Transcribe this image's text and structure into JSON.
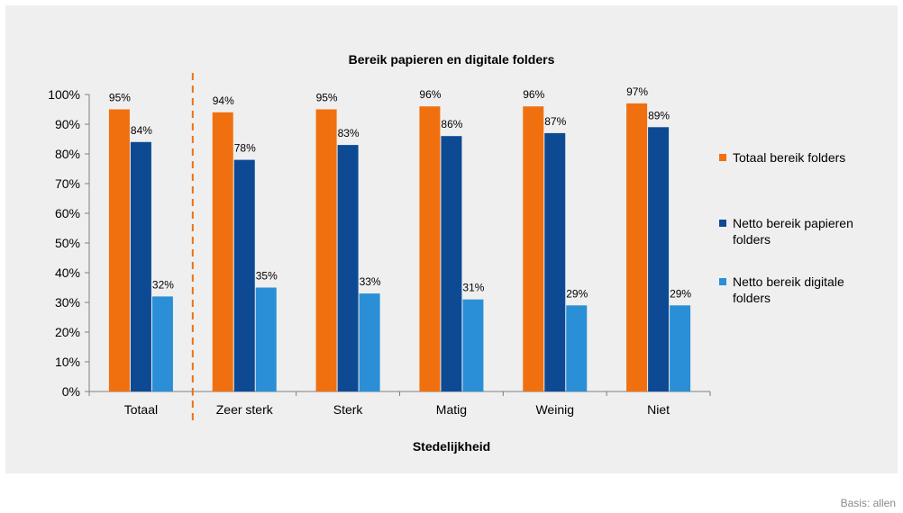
{
  "chart_data": {
    "type": "bar",
    "title": "Bereik papieren en digitale folders",
    "xlabel": "Stedelijkheid",
    "ylabel": "",
    "ylim": [
      0,
      100
    ],
    "yticks": [
      "0%",
      "10%",
      "20%",
      "30%",
      "40%",
      "50%",
      "60%",
      "70%",
      "80%",
      "90%",
      "100%"
    ],
    "categories": [
      "Totaal",
      "Zeer sterk",
      "Sterk",
      "Matig",
      "Weinig",
      "Niet"
    ],
    "series": [
      {
        "name": "Totaal bereik folders",
        "color": "#f07010",
        "values": [
          95,
          94,
          95,
          96,
          96,
          97
        ],
        "labels": [
          "95%",
          "94%",
          "95%",
          "96%",
          "96%",
          "97%"
        ]
      },
      {
        "name": "Netto bereik papieren folders",
        "color": "#0d4a93",
        "values": [
          84,
          78,
          83,
          86,
          87,
          89
        ],
        "labels": [
          "84%",
          "78%",
          "83%",
          "86%",
          "87%",
          "89%"
        ]
      },
      {
        "name": "Netto bereik digitale folders",
        "color": "#2a8fd6",
        "values": [
          32,
          35,
          33,
          31,
          29,
          29
        ],
        "labels": [
          "32%",
          "35%",
          "33%",
          "31%",
          "29%",
          "29%"
        ]
      }
    ],
    "legend_position": "right",
    "grid": false,
    "separator_after_category": "Totaal"
  },
  "footnote": "Basis: allen"
}
